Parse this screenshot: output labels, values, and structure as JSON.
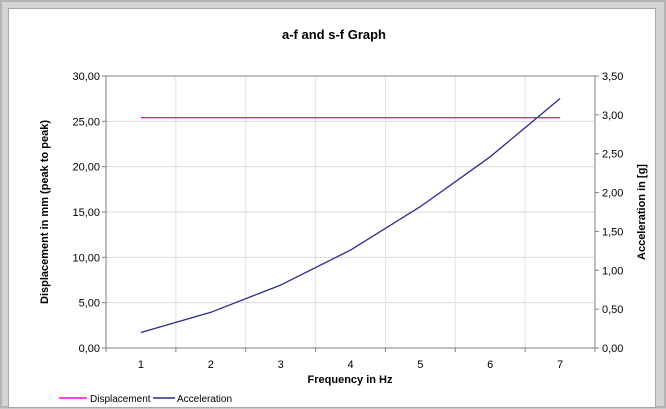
{
  "chart_data": {
    "type": "line",
    "title": "a-f and s-f Graph",
    "xlabel": "Frequency in Hz",
    "ylabel": "Displacement in mm (peak to peak)",
    "y2label": "Acceleration in [g]",
    "x": [
      1,
      2,
      3,
      4,
      5,
      6,
      7
    ],
    "xlim": [
      0.5,
      7.5
    ],
    "ylim": [
      0,
      30
    ],
    "y2lim": [
      0,
      3.5
    ],
    "y_ticks": [
      "0,00",
      "5,00",
      "10,00",
      "15,00",
      "20,00",
      "25,00",
      "30,00"
    ],
    "y2_ticks": [
      "0,00",
      "0,50",
      "1,00",
      "1,50",
      "2,00",
      "2,50",
      "3,00",
      "3,50"
    ],
    "x_ticks": [
      "1",
      "2",
      "3",
      "4",
      "5",
      "6",
      "7"
    ],
    "grid": true,
    "legend_position": "bottom-left",
    "series": [
      {
        "name": "Displacement",
        "axis": "left",
        "color": "#ff00ff",
        "values": [
          25.4,
          25.4,
          25.4,
          25.4,
          25.4,
          25.4,
          25.4
        ]
      },
      {
        "name": "Acceleration",
        "axis": "right",
        "color": "#2a2a8a",
        "values": [
          0.2,
          0.46,
          0.81,
          1.26,
          1.82,
          2.46,
          3.21
        ]
      }
    ]
  }
}
